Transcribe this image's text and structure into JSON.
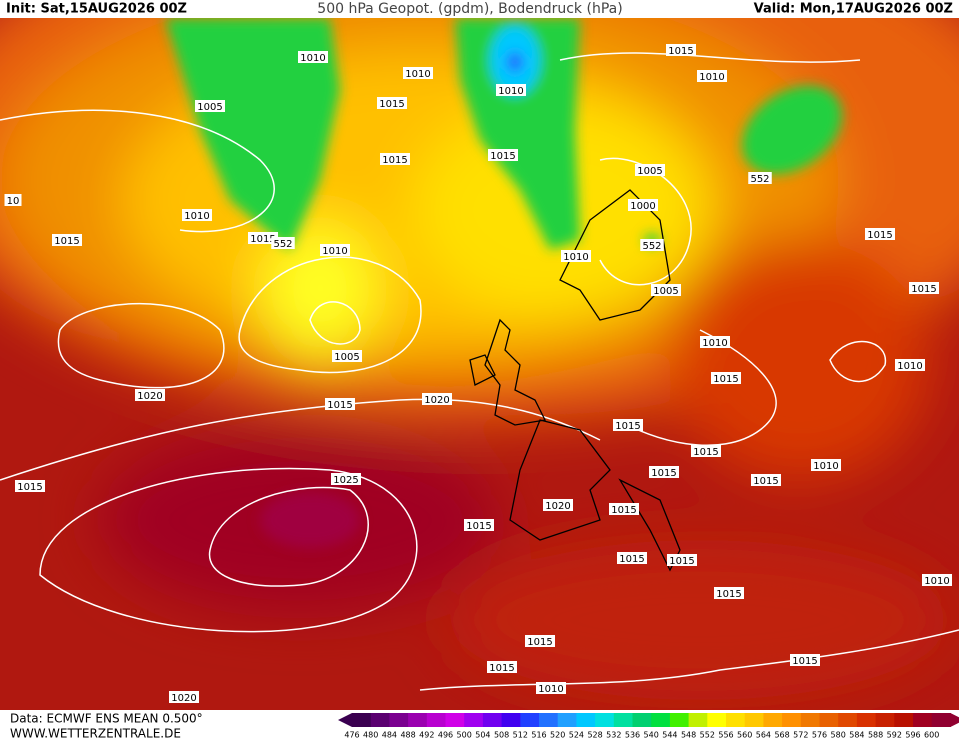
{
  "header": {
    "init": "Init: Sat,15AUG2026 00Z",
    "title": "500 hPa Geopot. (gpdm), Bodendruck (hPa)",
    "valid": "Valid: Mon,17AUG2026 00Z"
  },
  "footer": {
    "source": "Data: ECMWF ENS MEAN 0.500°",
    "site": "WWW.WETTERZENTRALE.DE"
  },
  "map": {
    "isobar_labels": [
      "1010",
      "1005",
      "1010",
      "1015",
      "1015",
      "1010",
      "1015",
      "552",
      "1010",
      "1015",
      "10",
      "1010",
      "1015",
      "1015",
      "1010",
      "1005",
      "552",
      "1000",
      "552",
      "1010",
      "1005",
      "1015",
      "1015",
      "1010",
      "1005",
      "1020",
      "1015",
      "1020",
      "1015",
      "1010",
      "1015",
      "1015",
      "1015",
      "1010",
      "1015",
      "1015",
      "1025",
      "1020",
      "1015",
      "1015",
      "1015",
      "1015",
      "1010",
      "1015",
      "1015",
      "1015",
      "1015",
      "1010",
      "1020"
    ]
  },
  "colorbar": {
    "values": [
      476,
      480,
      484,
      488,
      492,
      496,
      500,
      504,
      508,
      512,
      516,
      520,
      524,
      528,
      532,
      536,
      540,
      544,
      548,
      552,
      556,
      560,
      564,
      568,
      572,
      576,
      580,
      584,
      588,
      592,
      596,
      600
    ],
    "colors": [
      "#3a0050",
      "#5a0070",
      "#7a0090",
      "#9a00b0",
      "#b800d0",
      "#d000e8",
      "#a000f0",
      "#7000f0",
      "#4000f0",
      "#2040ff",
      "#2070ff",
      "#20a0ff",
      "#00c8ff",
      "#00e0e0",
      "#00e0a0",
      "#00d070",
      "#00e040",
      "#40f000",
      "#c0f000",
      "#ffff00",
      "#ffe000",
      "#ffc800",
      "#ffa800",
      "#ff9000",
      "#f07800",
      "#e86000",
      "#e04800",
      "#d83000",
      "#c82000",
      "#b81000",
      "#a00020",
      "#900030"
    ]
  }
}
